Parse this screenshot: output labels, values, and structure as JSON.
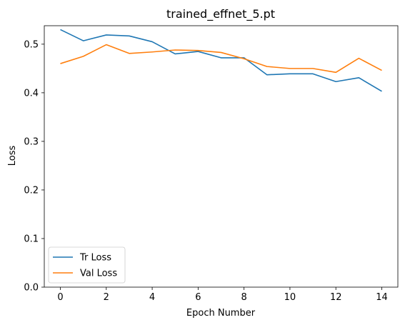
{
  "chart_data": {
    "type": "line",
    "title": "trained_effnet_5.pt",
    "xlabel": "Epoch Number",
    "ylabel": "Loss",
    "x": [
      0,
      1,
      2,
      3,
      4,
      5,
      6,
      7,
      8,
      9,
      10,
      11,
      12,
      13,
      14
    ],
    "xlim": [
      -0.7,
      14.7
    ],
    "ylim": [
      0,
      0.538
    ],
    "xticks": [
      0,
      2,
      4,
      6,
      8,
      10,
      12,
      14
    ],
    "xtick_labels": [
      "0",
      "2",
      "4",
      "6",
      "8",
      "10",
      "12",
      "14"
    ],
    "yticks": [
      0,
      0.1,
      0.2,
      0.3,
      0.4,
      0.5
    ],
    "ytick_labels": [
      "0.0",
      "0.1",
      "0.2",
      "0.3",
      "0.4",
      "0.5"
    ],
    "grid": false,
    "legend_position": "lower-left",
    "series": [
      {
        "name": "Tr Loss",
        "color": "#1f77b4",
        "values": [
          0.53,
          0.507,
          0.519,
          0.517,
          0.505,
          0.48,
          0.485,
          0.472,
          0.472,
          0.437,
          0.439,
          0.439,
          0.423,
          0.431,
          0.403
        ]
      },
      {
        "name": "Val Loss",
        "color": "#ff7f0e",
        "values": [
          0.46,
          0.475,
          0.499,
          0.481,
          0.484,
          0.488,
          0.487,
          0.483,
          0.47,
          0.454,
          0.45,
          0.45,
          0.442,
          0.471,
          0.446
        ]
      }
    ]
  }
}
